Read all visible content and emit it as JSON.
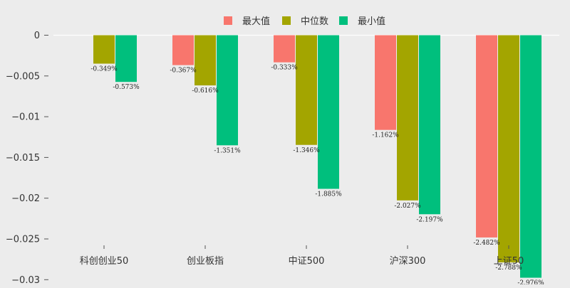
{
  "chart_data": {
    "type": "bar",
    "title": "",
    "xlabel": "",
    "ylabel": "",
    "categories": [
      "科创创业50",
      "创业板指",
      "中证500",
      "沪深300",
      "上证50"
    ],
    "series": [
      {
        "name": "最大值",
        "color": "#f8766d",
        "values": [
          null,
          -0.00367,
          -0.00333,
          -0.01162,
          -0.02482
        ],
        "labels": [
          "",
          "-0.367%",
          "-0.333%",
          "-1.162%",
          "-2.482%"
        ]
      },
      {
        "name": "中位数",
        "color": "#a3a500",
        "values": [
          -0.00349,
          -0.00616,
          -0.01346,
          -0.02027,
          -0.02788
        ],
        "labels": [
          "-0.349%",
          "-0.616%",
          "-1.346%",
          "-2.027%",
          "-2.788%"
        ]
      },
      {
        "name": "最小值",
        "color": "#00bf7d",
        "values": [
          -0.00573,
          -0.01351,
          -0.01885,
          -0.02197,
          -0.02976
        ],
        "labels": [
          "-0.573%",
          "-1.351%",
          "-1.885%",
          "-2.197%",
          "-2.976%"
        ]
      }
    ],
    "yticks": [
      0,
      -0.005,
      -0.01,
      -0.015,
      -0.02,
      -0.025,
      -0.03
    ],
    "ytick_labels": [
      "0",
      "−0.005",
      "−0.01",
      "−0.015",
      "−0.02",
      "−0.025",
      "−0.03"
    ],
    "ylim": [
      -0.0305,
      0.001
    ],
    "grid": false,
    "legend_position": "top-center",
    "background": "#ececec"
  }
}
